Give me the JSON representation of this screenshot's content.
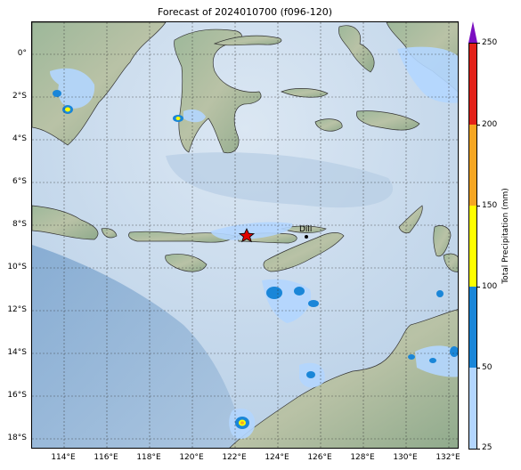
{
  "title": "Forecast of 2024010700 (f096-120)",
  "lat_labels": [
    "0°",
    "2°S",
    "4°S",
    "6°S",
    "8°S",
    "10°S",
    "12°S",
    "14°S",
    "16°S",
    "18°S"
  ],
  "lon_labels": [
    "114°E",
    "116°E",
    "118°E",
    "120°E",
    "122°E",
    "124°E",
    "126°E",
    "128°E",
    "130°E",
    "132°E"
  ],
  "city": {
    "name": "Dili"
  },
  "marker": {
    "type": "red-star"
  },
  "colorbar": {
    "label": "Total Precipitation (mm)",
    "ticks": [
      "25",
      "50",
      "100",
      "150",
      "200",
      "250"
    ],
    "colors": [
      "#b3d6ff",
      "#1a86d8",
      "#ffff00",
      "#f5a623",
      "#e32119"
    ],
    "extend_color": "#7b0fc1"
  }
}
